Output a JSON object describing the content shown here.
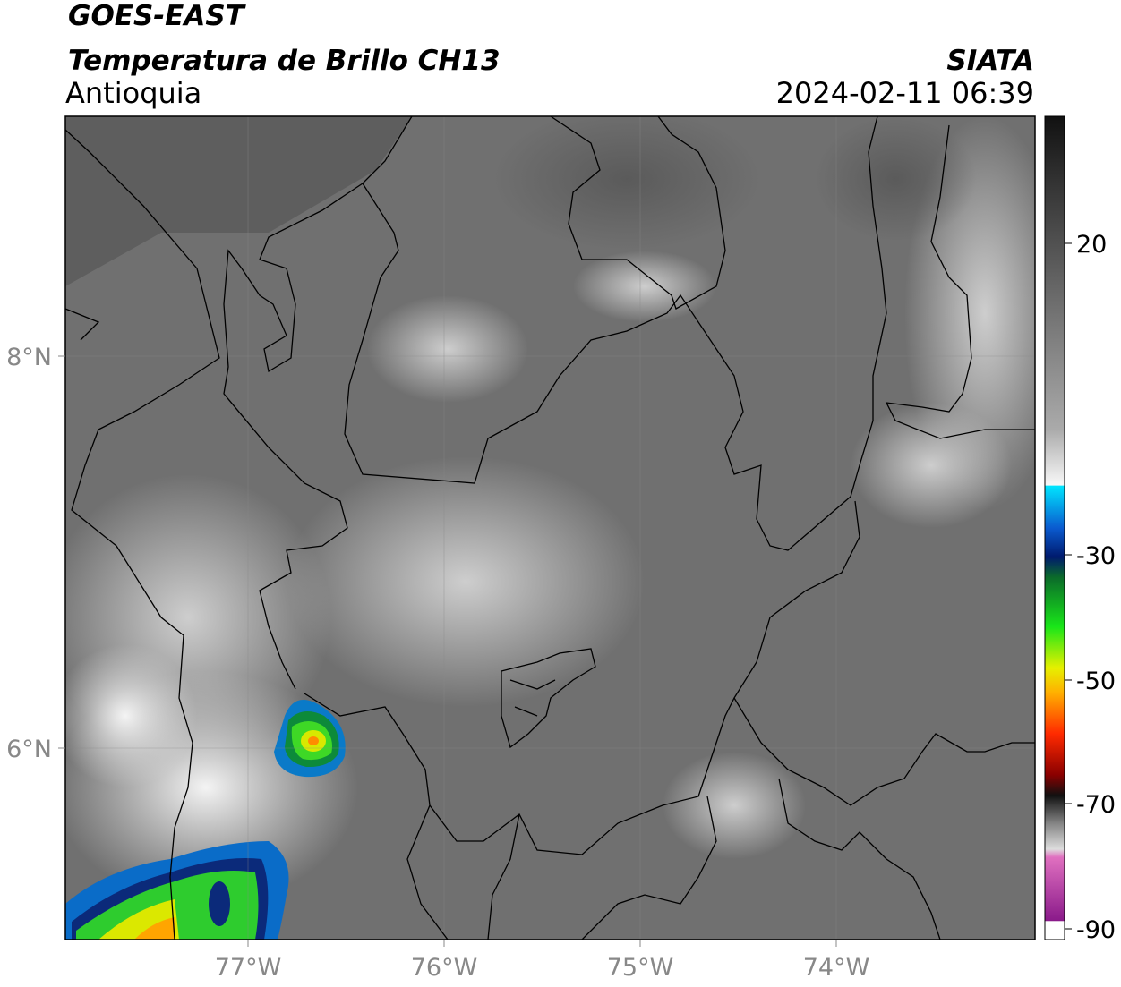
{
  "header": {
    "title": "GOES-EAST",
    "subtitle": "Temperatura de Brillo CH13",
    "region": "Antioquia",
    "source": "SIATA",
    "datetime": "2024-02-11 06:39"
  },
  "map": {
    "lat_labels": [
      "8°N",
      "6°N"
    ],
    "lon_labels": [
      "77°W",
      "76°W",
      "75°W",
      "74°W"
    ]
  },
  "colorbar": {
    "tick_labels": [
      "20",
      "-30",
      "-50",
      "-70",
      "-90"
    ]
  }
}
